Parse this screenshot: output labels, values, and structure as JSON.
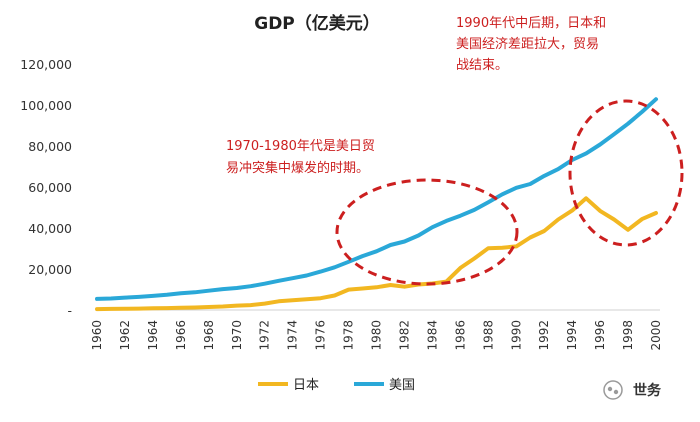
{
  "chart_data": {
    "type": "line",
    "title": "GDP（亿美元）",
    "xlabel": "",
    "ylabel": "",
    "ylim": [
      0,
      120000
    ],
    "ytick_values": [
      0,
      20000,
      40000,
      60000,
      80000,
      100000,
      120000
    ],
    "ytick_labels": [
      "-",
      "20,000",
      "40,000",
      "60,000",
      "80,000",
      "100,000",
      "120,000"
    ],
    "xlim": [
      1960,
      2000
    ],
    "xtick_labels": [
      "1960",
      "1962",
      "1964",
      "1966",
      "1968",
      "1970",
      "1972",
      "1974",
      "1976",
      "1978",
      "1980",
      "1982",
      "1984",
      "1986",
      "1988",
      "1990",
      "1992",
      "1994",
      "1996",
      "1998",
      "2000"
    ],
    "x": [
      1960,
      1961,
      1962,
      1963,
      1964,
      1965,
      1966,
      1967,
      1968,
      1969,
      1970,
      1971,
      1972,
      1973,
      1974,
      1975,
      1976,
      1977,
      1978,
      1979,
      1980,
      1981,
      1982,
      1983,
      1984,
      1985,
      1986,
      1987,
      1988,
      1989,
      1990,
      1991,
      1992,
      1993,
      1994,
      1995,
      1996,
      1997,
      1998,
      1999,
      2000
    ],
    "series": [
      {
        "name": "日本",
        "color": "#f2b721",
        "values": [
          443,
          535,
          609,
          698,
          817,
          910,
          1053,
          1234,
          1466,
          1722,
          2127,
          2403,
          3128,
          4251,
          4713,
          5216,
          5736,
          7095,
          9951,
          10482,
          11053,
          12182,
          11349,
          12435,
          12944,
          13852,
          20515,
          25100,
          30152,
          30373,
          31040,
          35364,
          38527,
          44149,
          48505,
          54492,
          48336,
          44145,
          39146,
          44330,
          47312
        ]
      },
      {
        "name": "美国",
        "color": "#2aa8d8",
        "values": [
          5433,
          5633,
          6051,
          6386,
          6858,
          7437,
          8150,
          8617,
          9425,
          10199,
          10737,
          11627,
          12820,
          14255,
          15488,
          16849,
          18731,
          20812,
          23519,
          26273,
          28625,
          31695,
          33393,
          36343,
          40408,
          43469,
          46003,
          48822,
          52529,
          56417,
          59631,
          61469,
          65396,
          68725,
          73161,
          76399,
          80732,
          85778,
          90891,
          96645,
          102848
        ]
      }
    ],
    "annotations": [
      {
        "lines": [
          "1990年代中后期，日本和",
          "美国经济差距拉大，贸易",
          "战结束。"
        ],
        "color": "#cc1f1f"
      },
      {
        "lines": [
          "1970-1980年代是美日贸",
          "易冲突集中爆发的时期。"
        ],
        "color": "#cc1f1f"
      }
    ],
    "legend_position": "bottom-center"
  },
  "watermark": "世务"
}
